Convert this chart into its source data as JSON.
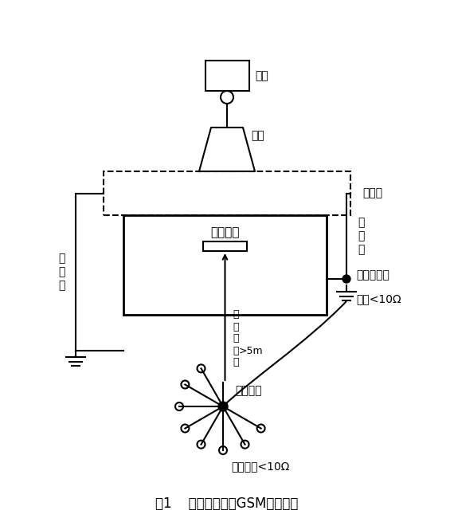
{
  "title": "图1    租用民房建的GSM基站地网",
  "bg_color": "#ffffff",
  "line_color": "#000000",
  "label_tiexian": "天线",
  "label_tieta": "铁塔",
  "label_yuleeidai": "避雷带",
  "label_zuyong": "租用民房",
  "label_yinxia_left": "引\n下\n线",
  "label_yinxia_right": "引\n下\n线",
  "label_jifang_yinruxian": "机\n房\n引\n入\n线",
  "label_gt5m": ">5m",
  "label_shuiping": "水平连接",
  "label_jifang_diwang": "机房地网<10Ω",
  "label_fanglei": "防雷引下线",
  "label_dizhu": "地阻<10Ω"
}
